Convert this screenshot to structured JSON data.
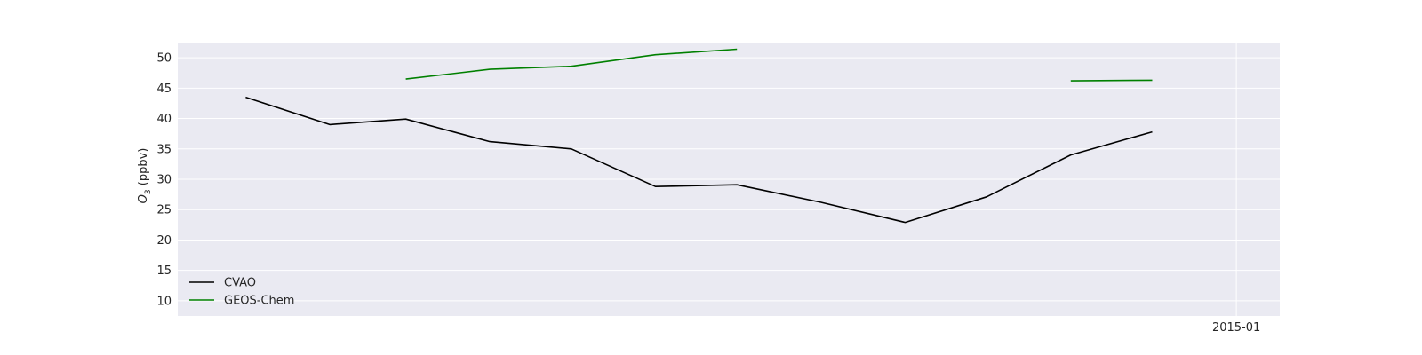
{
  "chart_data": {
    "type": "line",
    "title": "",
    "xlabel": "",
    "ylabel": "O3 (ppbv)",
    "ylabel_main": "O",
    "ylabel_sub": "3",
    "ylabel_unit": " (ppbv)",
    "x_ticks": [
      {
        "date": "2015-01-01",
        "label": "2015-01"
      }
    ],
    "xlim": [
      "2013-12-07",
      "2015-01-17"
    ],
    "ylim": [
      7.5,
      52.5
    ],
    "y_ticks": [
      10,
      15,
      20,
      25,
      30,
      35,
      40,
      45,
      50
    ],
    "grid": true,
    "legend_position": "lower-left",
    "series": [
      {
        "name": "CVAO",
        "color": "#000000",
        "points": [
          {
            "x": "2014-01-01",
            "y": 43.5
          },
          {
            "x": "2014-02-01",
            "y": 39.0
          },
          {
            "x": "2014-03-01",
            "y": 39.9
          },
          {
            "x": "2014-04-01",
            "y": 36.2
          },
          {
            "x": "2014-05-01",
            "y": 35.0
          },
          {
            "x": "2014-06-01",
            "y": 28.8
          },
          {
            "x": "2014-07-01",
            "y": 29.1
          },
          {
            "x": "2014-08-01",
            "y": 26.2
          },
          {
            "x": "2014-09-01",
            "y": 22.9
          },
          {
            "x": "2014-10-01",
            "y": 27.1
          },
          {
            "x": "2014-11-01",
            "y": 34.0
          },
          {
            "x": "2014-12-01",
            "y": 37.8
          }
        ]
      },
      {
        "name": "GEOS-Chem",
        "color": "#008000",
        "points": [
          {
            "x": "2014-01-01",
            "y": null
          },
          {
            "x": "2014-02-01",
            "y": null
          },
          {
            "x": "2014-03-01",
            "y": 46.5
          },
          {
            "x": "2014-04-01",
            "y": 48.1
          },
          {
            "x": "2014-05-01",
            "y": 48.6
          },
          {
            "x": "2014-06-01",
            "y": 50.5
          },
          {
            "x": "2014-07-01",
            "y": 51.4
          },
          {
            "x": "2014-08-01",
            "y": null
          },
          {
            "x": "2014-09-01",
            "y": null
          },
          {
            "x": "2014-10-01",
            "y": null
          },
          {
            "x": "2014-11-01",
            "y": 46.2
          },
          {
            "x": "2014-12-01",
            "y": 46.3
          }
        ]
      }
    ],
    "colors": {
      "plot_background": "#eaeaf2",
      "grid": "#ffffff",
      "text": "#262626"
    }
  }
}
